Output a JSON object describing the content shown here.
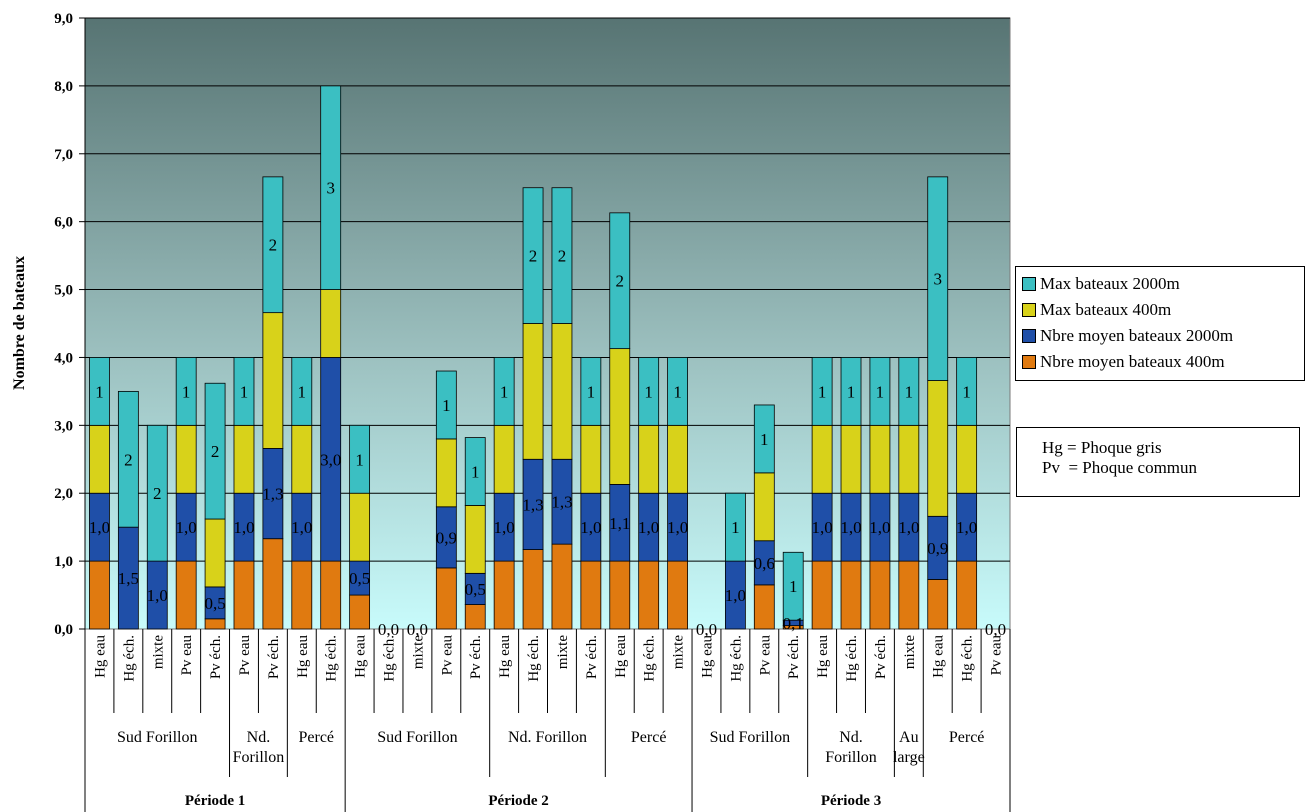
{
  "chart_data": {
    "type": "bar",
    "stacked": true,
    "ylabel": "Nombre de bateaux",
    "ylim": [
      0,
      9
    ],
    "ytick_labels": [
      "0,0",
      "1,0",
      "2,0",
      "3,0",
      "4,0",
      "5,0",
      "6,0",
      "7,0",
      "8,0",
      "9,0"
    ],
    "grid": true,
    "legend_position": "right",
    "categories": [
      "Hg eau",
      "Hg éch.",
      "mixte",
      "Pv eau",
      "Pv éch.",
      "Pv eau",
      "Pv éch.",
      "Hg eau",
      "Hg éch.",
      "Hg eau",
      "Hg éch.",
      "mixte",
      "Pv eau",
      "Pv éch.",
      "Hg eau",
      "Hg éch.",
      "mixte",
      "Pv éch.",
      "Hg eau",
      "Hg éch.",
      "mixte",
      "Hg eau",
      "Hg éch.",
      "Pv eau",
      "Pv éch.",
      "Hg eau",
      "Hg éch.",
      "Pv éch.",
      "mixte",
      "Hg eau",
      "Hg éch.",
      "Pv eau"
    ],
    "groups": [
      {
        "label": "Sud Forillon",
        "start": 0,
        "count": 5
      },
      {
        "label": "Nd.\nForillon",
        "start": 5,
        "count": 2
      },
      {
        "label": "Percé",
        "start": 7,
        "count": 2
      },
      {
        "label": "Sud Forillon",
        "start": 9,
        "count": 5
      },
      {
        "label": "Nd. Forillon",
        "start": 14,
        "count": 4
      },
      {
        "label": "Percé",
        "start": 18,
        "count": 3
      },
      {
        "label": "Sud Forillon",
        "start": 21,
        "count": 4
      },
      {
        "label": "Nd.\nForillon",
        "start": 25,
        "count": 3
      },
      {
        "label": "Au\nlarge",
        "start": 28,
        "count": 1
      },
      {
        "label": "Percé",
        "start": 29,
        "count": 3
      }
    ],
    "periods": [
      {
        "label": "Période 1",
        "start": 0,
        "count": 9
      },
      {
        "label": "Période 2",
        "start": 9,
        "count": 12
      },
      {
        "label": "Période 3",
        "start": 21,
        "count": 11
      }
    ],
    "series": [
      {
        "name": "Nbre moyen bateaux 400m",
        "color": "#e07a10",
        "values": [
          1,
          0,
          0,
          1,
          0.15,
          1,
          1.33,
          1,
          1,
          0.5,
          0,
          0,
          0.9,
          0.36,
          1,
          1.17,
          1.25,
          1,
          1,
          1,
          1,
          0,
          0,
          0.65,
          0.05,
          1,
          1,
          1,
          1,
          0.73,
          1,
          0
        ]
      },
      {
        "name": "Nbre moyen bateaux 2000m",
        "color": "#1f4fa8",
        "values": [
          1,
          1.5,
          1,
          1,
          0.47,
          1,
          1.33,
          1,
          3,
          0.5,
          0,
          0,
          0.9,
          0.46,
          1,
          1.33,
          1.25,
          1,
          1.13,
          1,
          1,
          0,
          1,
          0.65,
          0.08,
          1,
          1,
          1,
          1,
          0.93,
          1,
          0
        ]
      },
      {
        "name": "Max bateaux 400m",
        "color": "#d8d21a",
        "values": [
          1,
          0,
          0,
          1,
          1,
          1,
          2,
          1,
          1,
          1,
          0,
          0,
          1,
          1,
          1,
          2,
          2,
          1,
          2,
          1,
          1,
          0,
          0,
          1,
          0,
          1,
          1,
          1,
          1,
          2,
          1,
          0
        ]
      },
      {
        "name": "Max bateaux 2000m",
        "color": "#3bbfc2",
        "values": [
          1,
          2,
          2,
          1,
          2,
          1,
          2,
          1,
          3,
          1,
          0,
          0,
          1,
          1,
          1,
          2,
          2,
          1,
          2,
          1,
          1,
          0,
          1,
          1,
          1,
          1,
          1,
          1,
          1,
          3,
          1,
          0
        ]
      }
    ],
    "bar_labels": {
      "Nbre moyen bateaux 2000m": [
        "1,0",
        "1,5",
        "1,0",
        "1,0",
        "0,5",
        "1,0",
        "1,3",
        "1,0",
        "3,0",
        "0,5",
        "0,0",
        "0,0",
        "0,9",
        "0,5",
        "1,0",
        "1,3",
        "1,3",
        "1,0",
        "1,1",
        "1,0",
        "1,0",
        "0,0",
        "1,0",
        "0,6",
        "0,1",
        "1,0",
        "1,0",
        "1,0",
        "1,0",
        "0,9",
        "1,0",
        "0,0"
      ],
      "Max bateaux 2000m": [
        "1",
        "2",
        "2",
        "1",
        "2",
        "1",
        "2",
        "1",
        "3",
        "1",
        "",
        "",
        "1",
        "1",
        "1",
        "2",
        "2",
        "1",
        "2",
        "1",
        "1",
        "",
        "1",
        "1",
        "1",
        "1",
        "1",
        "1",
        "1",
        "3",
        "1",
        ""
      ]
    }
  },
  "note": {
    "lines": "Hg = Phoque gris\nPv  = Phoque commun"
  }
}
